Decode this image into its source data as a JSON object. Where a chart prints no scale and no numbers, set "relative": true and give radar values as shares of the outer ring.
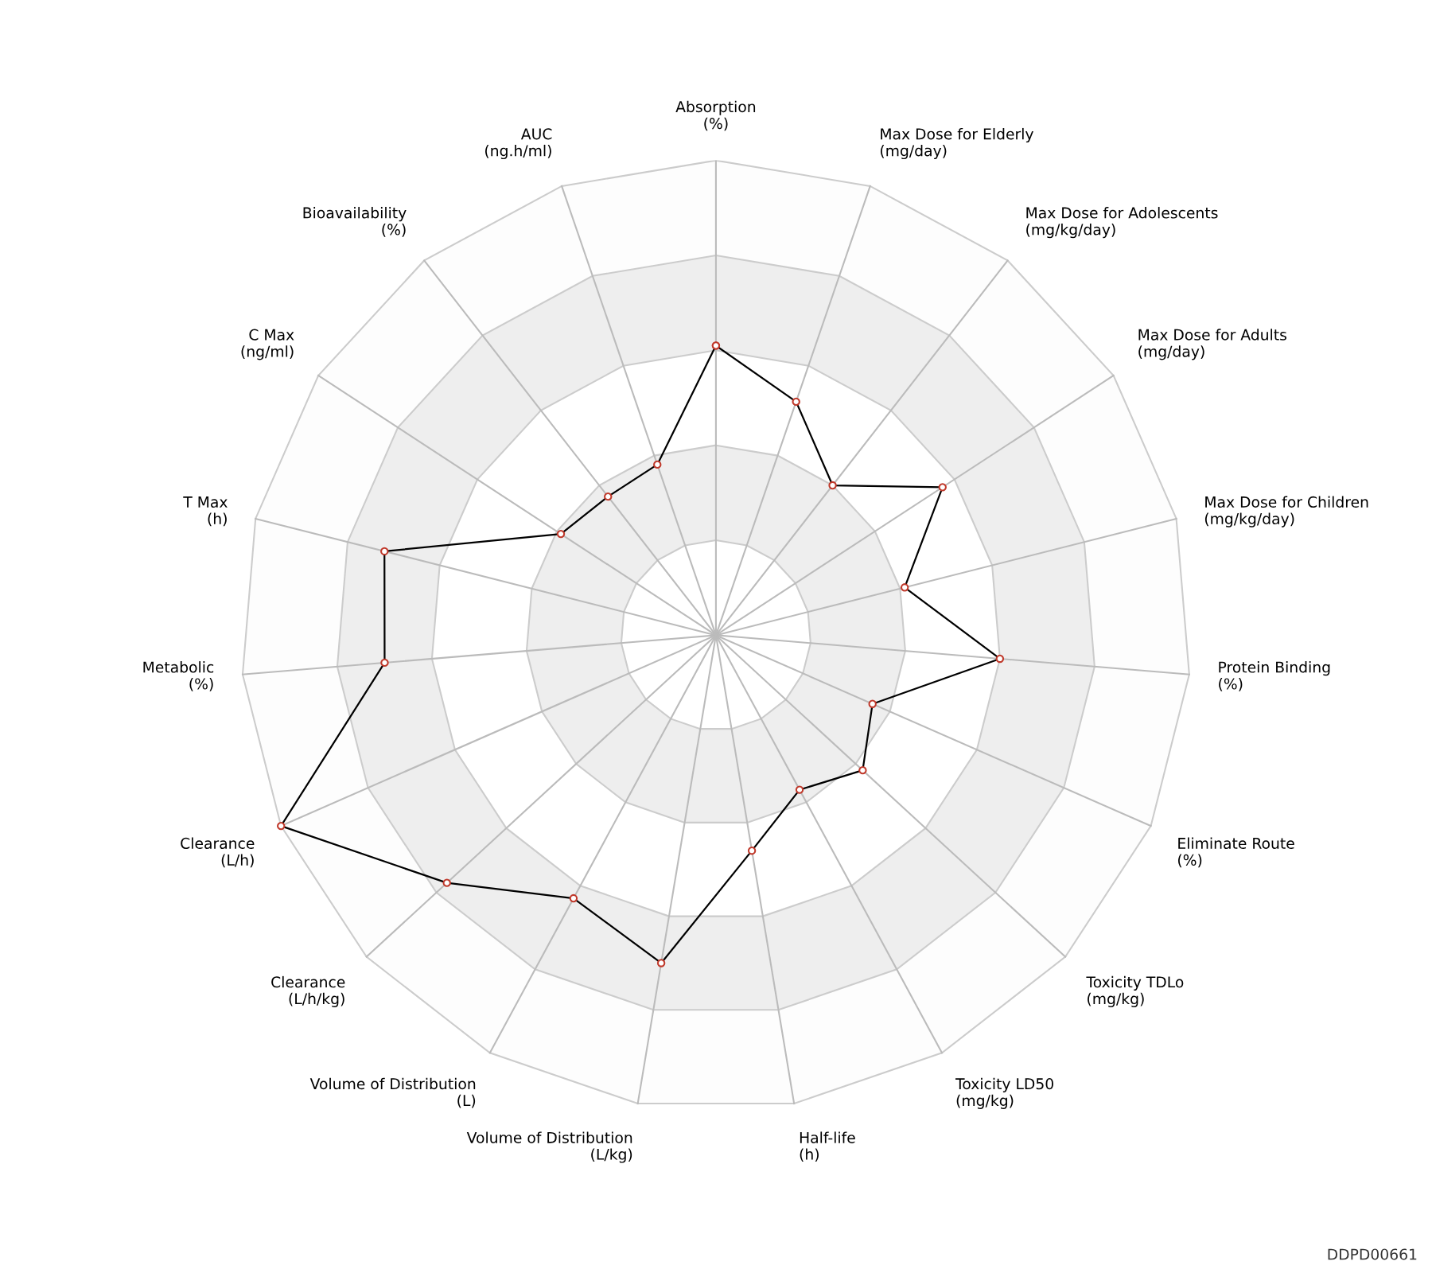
{
  "chart_data": {
    "type": "radar",
    "relative": true,
    "grid": true,
    "marker": "circle",
    "line_style": "solid",
    "categories": [
      "Absorption\n(%)",
      "Max Dose for Elderly\n(mg/day)",
      "Max Dose for Adolescents\n(mg/kg/day)",
      "Max Dose for Adults\n(mg/day)",
      "Max Dose for Children\n(mg/kg/day)",
      "Protein Binding\n(%)",
      "Eliminate Route\n(%)",
      "Toxicity TDLo\n(mg/kg)",
      "Toxicity LD50\n(mg/kg)",
      "Half-life\n(h)",
      "Volume of Distribution\n(L/kg)",
      "Volume of Distribution\n(L)",
      "Clearance\n(L/h/kg)",
      "Clearance\n(L/h)",
      "Metabolic\n(%)",
      "T Max\n(h)",
      "C Max\n(ng/ml)",
      "Bioavailability\n(%)",
      "AUC\n(ng.h/ml)"
    ],
    "series": [
      {
        "color": "#000000",
        "values": [
          0.61,
          0.52,
          0.4,
          0.57,
          0.41,
          0.6,
          0.36,
          0.42,
          0.37,
          0.46,
          0.7,
          0.63,
          0.77,
          1.0,
          0.7,
          0.72,
          0.39,
          0.37,
          0.38
        ]
      }
    ],
    "annotations": [
      "DDPD00661"
    ]
  }
}
